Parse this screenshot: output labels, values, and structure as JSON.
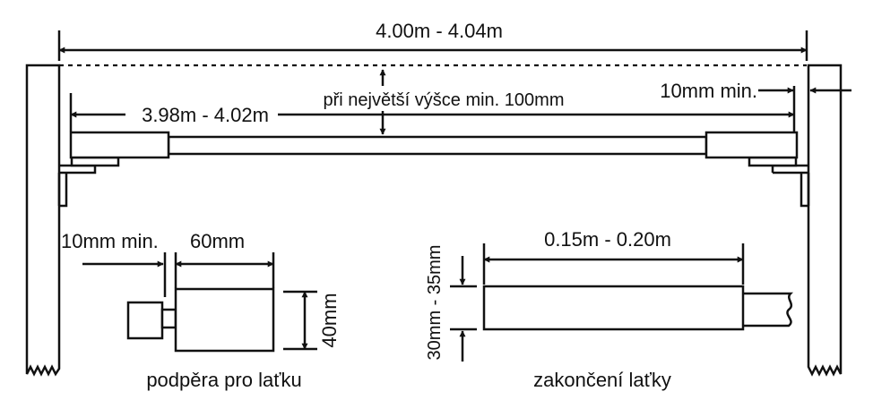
{
  "dimensions": {
    "overall_width": "4.00m - 4.04m",
    "bar_width": "3.98m - 4.02m",
    "height_note": "při největší výšce min. 100mm",
    "gap_right": "10mm min."
  },
  "support_detail": {
    "gap": "10mm min.",
    "length": "60mm",
    "height": "40mm",
    "caption": "podpěra pro laťku"
  },
  "end_detail": {
    "length": "0.15m - 0.20m",
    "height": "30mm - 35mm",
    "caption": "zakončení laťky"
  },
  "colors": {
    "ink": "#111111",
    "background": "#ffffff"
  }
}
